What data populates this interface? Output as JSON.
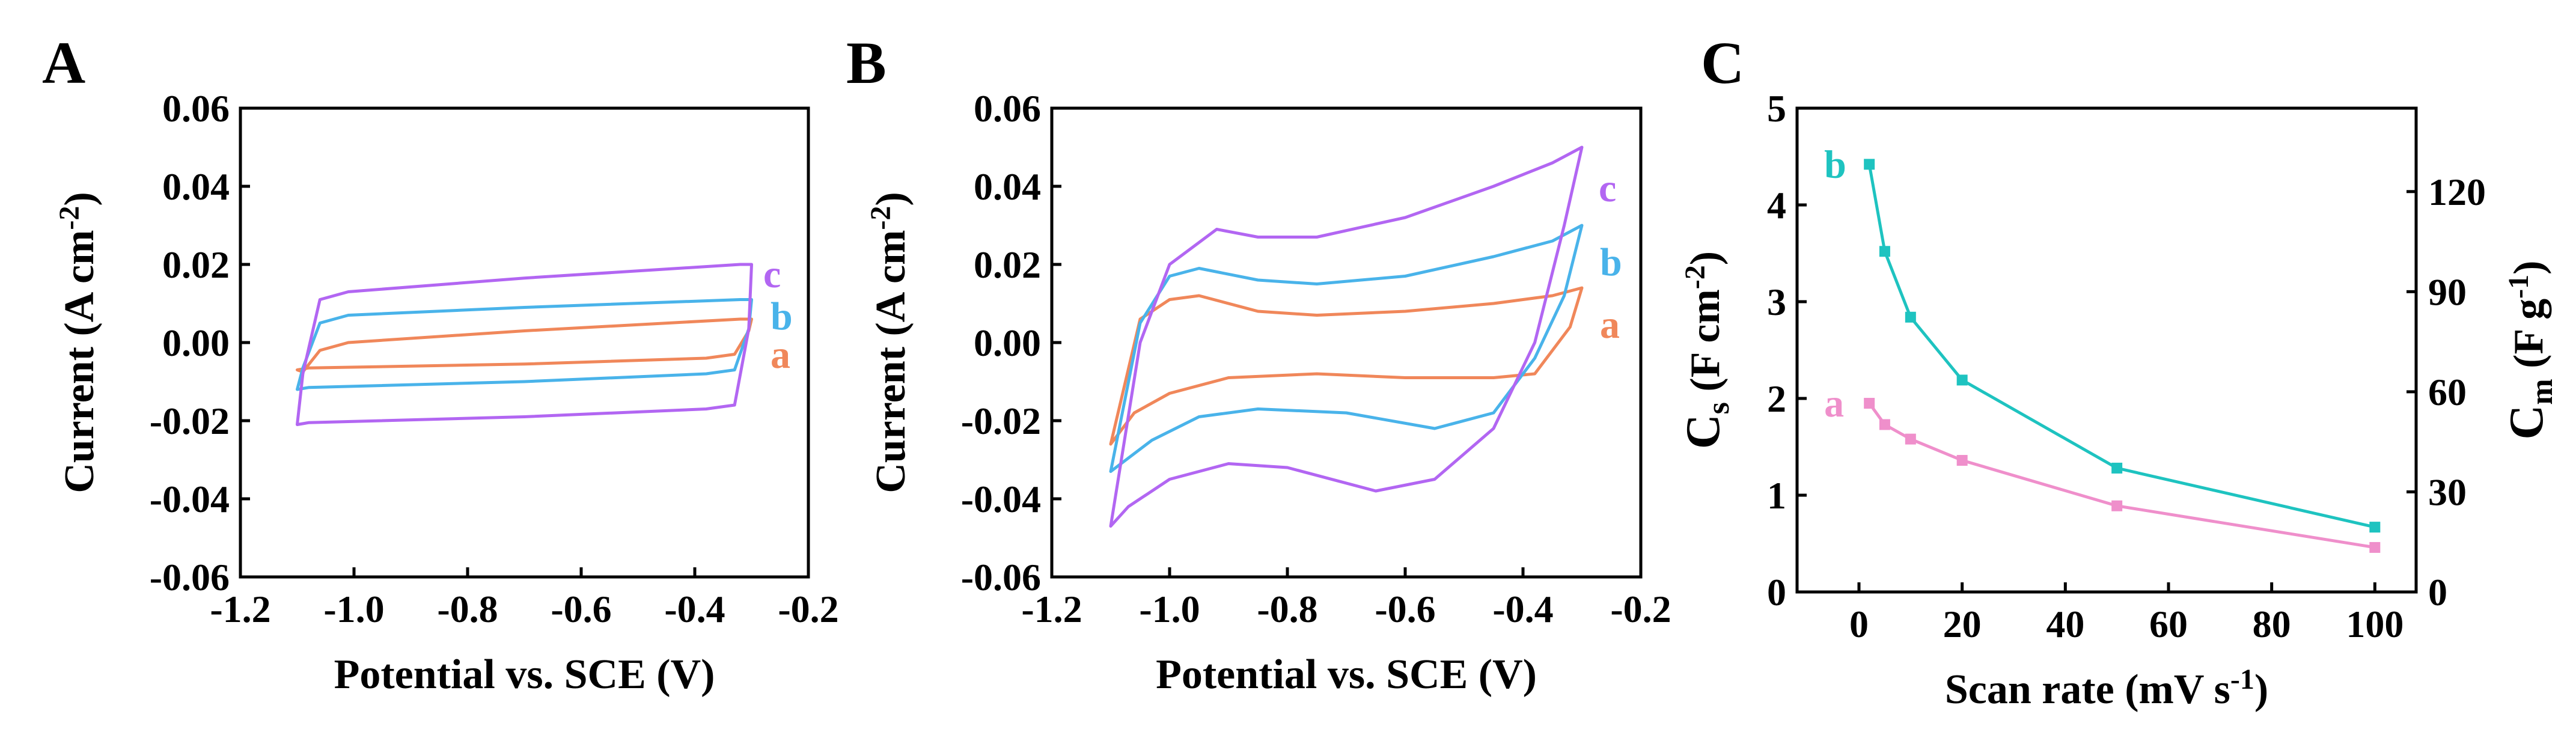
{
  "colors": {
    "a": "#F0875A",
    "b": "#49B3EA",
    "c": "#B266F2",
    "C_a": "#EF8FCB",
    "C_b": "#1EC3C0"
  },
  "panels": [
    {
      "label": "A",
      "chart_data": {
        "type": "line",
        "title": "",
        "xlabel": "Potential vs. SCE (V)",
        "ylabel_main": "Current (A cm",
        "ylabel_sup": "-2",
        "ylabel_close": ")",
        "xlim": [
          -1.2,
          -0.2
        ],
        "ylim": [
          -0.06,
          0.06
        ],
        "xticks": [
          "-1.2",
          "-1.0",
          "-0.8",
          "-0.6",
          "-0.4",
          "-0.2"
        ],
        "yticks": [
          "-0.06",
          "-0.04",
          "-0.02",
          "0.00",
          "0.02",
          "0.04",
          "0.06"
        ],
        "series": [
          {
            "name": "a",
            "color_key": "a",
            "v_start": -1.1,
            "v_end": -0.3,
            "i_upper_start": 0.0,
            "i_upper_end": 0.006,
            "i_lower_start": -0.007,
            "i_lower_end": -0.004,
            "shape": "rect"
          },
          {
            "name": "b",
            "color_key": "b",
            "v_start": -1.1,
            "v_end": -0.3,
            "i_upper_start": 0.007,
            "i_upper_end": 0.011,
            "i_lower_start": -0.012,
            "i_lower_end": -0.008,
            "shape": "rect"
          },
          {
            "name": "c",
            "color_key": "c",
            "v_start": -1.1,
            "v_end": -0.3,
            "i_upper_start": 0.013,
            "i_upper_end": 0.02,
            "i_lower_start": -0.021,
            "i_lower_end": -0.017,
            "shape": "rect"
          }
        ]
      }
    },
    {
      "label": "B",
      "chart_data": {
        "type": "line",
        "title": "",
        "xlabel": "Potential vs. SCE (V)",
        "ylabel_main": "Current (A cm",
        "ylabel_sup": "-2",
        "ylabel_close": ")",
        "xlim": [
          -1.2,
          -0.2
        ],
        "ylim": [
          -0.06,
          0.06
        ],
        "xticks": [
          "-1.2",
          "-1.0",
          "-0.8",
          "-0.6",
          "-0.4",
          "-0.2"
        ],
        "yticks": [
          "-0.06",
          "-0.04",
          "-0.02",
          "0.00",
          "0.02",
          "0.04",
          "0.06"
        ],
        "series": [
          {
            "name": "a",
            "color_key": "a",
            "upper": [
              [
                -1.1,
                -0.026
              ],
              [
                -1.05,
                0.006
              ],
              [
                -1.0,
                0.011
              ],
              [
                -0.95,
                0.012
              ],
              [
                -0.85,
                0.008
              ],
              [
                -0.75,
                0.007
              ],
              [
                -0.6,
                0.008
              ],
              [
                -0.45,
                0.01
              ],
              [
                -0.35,
                0.012
              ],
              [
                -0.3,
                0.014
              ]
            ],
            "lower": [
              [
                -0.3,
                0.014
              ],
              [
                -0.32,
                0.004
              ],
              [
                -0.38,
                -0.008
              ],
              [
                -0.45,
                -0.009
              ],
              [
                -0.6,
                -0.009
              ],
              [
                -0.75,
                -0.008
              ],
              [
                -0.9,
                -0.009
              ],
              [
                -1.0,
                -0.013
              ],
              [
                -1.06,
                -0.018
              ],
              [
                -1.1,
                -0.026
              ]
            ]
          },
          {
            "name": "b",
            "color_key": "b",
            "upper": [
              [
                -1.1,
                -0.033
              ],
              [
                -1.05,
                0.005
              ],
              [
                -1.0,
                0.017
              ],
              [
                -0.95,
                0.019
              ],
              [
                -0.85,
                0.016
              ],
              [
                -0.75,
                0.015
              ],
              [
                -0.6,
                0.017
              ],
              [
                -0.45,
                0.022
              ],
              [
                -0.35,
                0.026
              ],
              [
                -0.3,
                0.03
              ]
            ],
            "lower": [
              [
                -0.3,
                0.03
              ],
              [
                -0.33,
                0.012
              ],
              [
                -0.38,
                -0.004
              ],
              [
                -0.45,
                -0.018
              ],
              [
                -0.55,
                -0.022
              ],
              [
                -0.7,
                -0.018
              ],
              [
                -0.85,
                -0.017
              ],
              [
                -0.95,
                -0.019
              ],
              [
                -1.03,
                -0.025
              ],
              [
                -1.1,
                -0.033
              ]
            ]
          },
          {
            "name": "c",
            "color_key": "c",
            "upper": [
              [
                -1.1,
                -0.047
              ],
              [
                -1.05,
                0.0
              ],
              [
                -1.0,
                0.02
              ],
              [
                -0.92,
                0.029
              ],
              [
                -0.85,
                0.027
              ],
              [
                -0.75,
                0.027
              ],
              [
                -0.6,
                0.032
              ],
              [
                -0.45,
                0.04
              ],
              [
                -0.35,
                0.046
              ],
              [
                -0.3,
                0.05
              ]
            ],
            "lower": [
              [
                -0.3,
                0.05
              ],
              [
                -0.33,
                0.03
              ],
              [
                -0.38,
                0.0
              ],
              [
                -0.45,
                -0.022
              ],
              [
                -0.55,
                -0.035
              ],
              [
                -0.65,
                -0.038
              ],
              [
                -0.8,
                -0.032
              ],
              [
                -0.9,
                -0.031
              ],
              [
                -1.0,
                -0.035
              ],
              [
                -1.07,
                -0.042
              ],
              [
                -1.1,
                -0.047
              ]
            ]
          }
        ]
      }
    },
    {
      "label": "C",
      "chart_data": {
        "type": "line",
        "title": "",
        "xlabel_main": "Scan rate (mV s",
        "xlabel_sup": "-1",
        "xlabel_close": ")",
        "ylabel_left": {
          "main": "C",
          "sub": "s",
          "rest": " (F cm",
          "sup": "-2",
          "close": ")"
        },
        "ylabel_right": {
          "main": "C",
          "sub": "m",
          "rest": " (F g",
          "sup": "-1",
          "close": ")"
        },
        "xlim": [
          -12,
          108
        ],
        "ylim": [
          0,
          5
        ],
        "ylim_right": [
          0,
          145
        ],
        "xticks": [
          0,
          20,
          40,
          60,
          80,
          100
        ],
        "yticks": [
          0,
          1,
          2,
          3,
          4,
          5
        ],
        "yticks_right": [
          0,
          30,
          60,
          90,
          120
        ],
        "x": [
          2,
          5,
          10,
          20,
          50,
          100
        ],
        "series": [
          {
            "name": "a",
            "color_key": "C_a",
            "values": [
              1.95,
              1.73,
              1.58,
              1.36,
              0.89,
              0.46
            ]
          },
          {
            "name": "b",
            "color_key": "C_b",
            "values": [
              4.42,
              3.52,
              2.84,
              2.19,
              1.28,
              0.67
            ]
          }
        ]
      }
    }
  ]
}
